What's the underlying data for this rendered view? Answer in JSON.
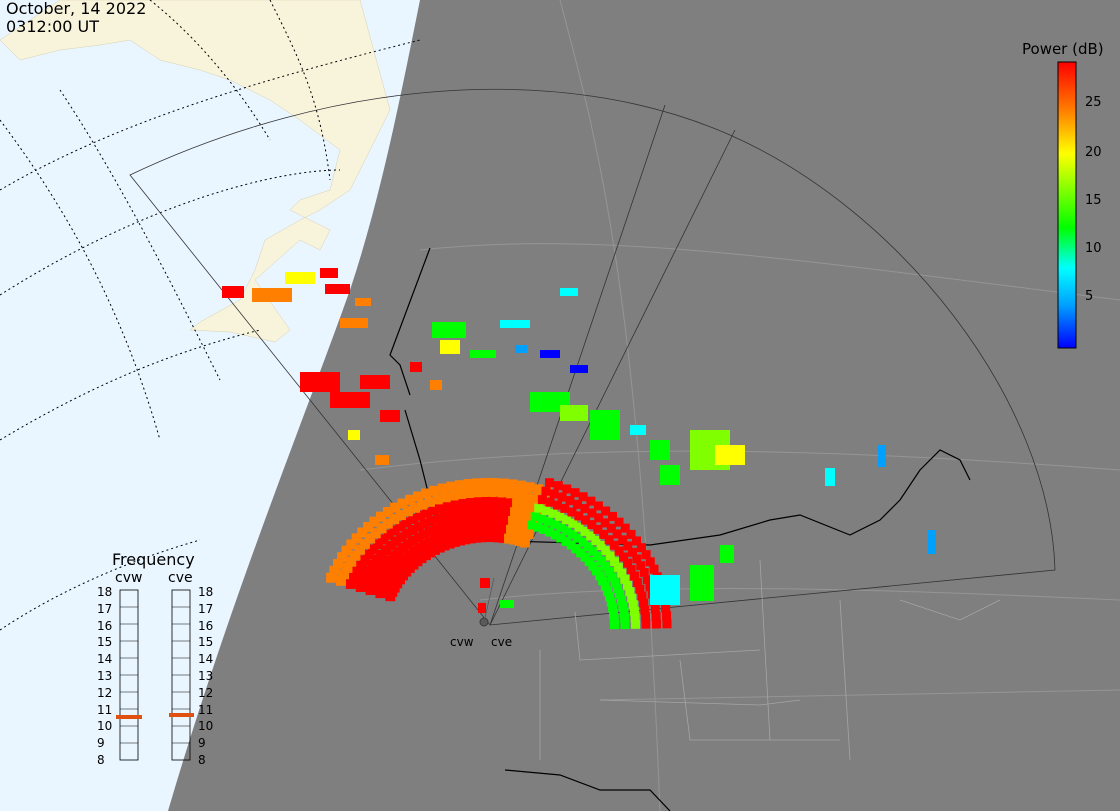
{
  "header": {
    "date": "October, 14 2022",
    "time": "0312:00 UT"
  },
  "colorbar": {
    "title": "Power (dB)",
    "ticks": [
      "25",
      "20",
      "15",
      "10",
      "5"
    ],
    "colors": [
      "#ff0000",
      "#ff7f00",
      "#ffff00",
      "#7fff00",
      "#00ff00",
      "#00ffff",
      "#00a0ff",
      "#0000ff"
    ]
  },
  "map": {
    "day_color": "#eaf6ff",
    "night_color": "#7f7f7f",
    "land_day_color": "#f8f4dc",
    "grid_style": "dotted"
  },
  "radars": [
    {
      "label": "cvw",
      "frequency_mhz": 10.9
    },
    {
      "label": "cve",
      "frequency_mhz": 11.0
    }
  ],
  "frequency_panel": {
    "title": "Frequency",
    "columns": [
      "cvw",
      "cve"
    ],
    "scale": [
      "18",
      "17",
      "16",
      "15",
      "14",
      "13",
      "12",
      "11",
      "10",
      "9",
      "8"
    ],
    "marker_color": "#e05010"
  }
}
